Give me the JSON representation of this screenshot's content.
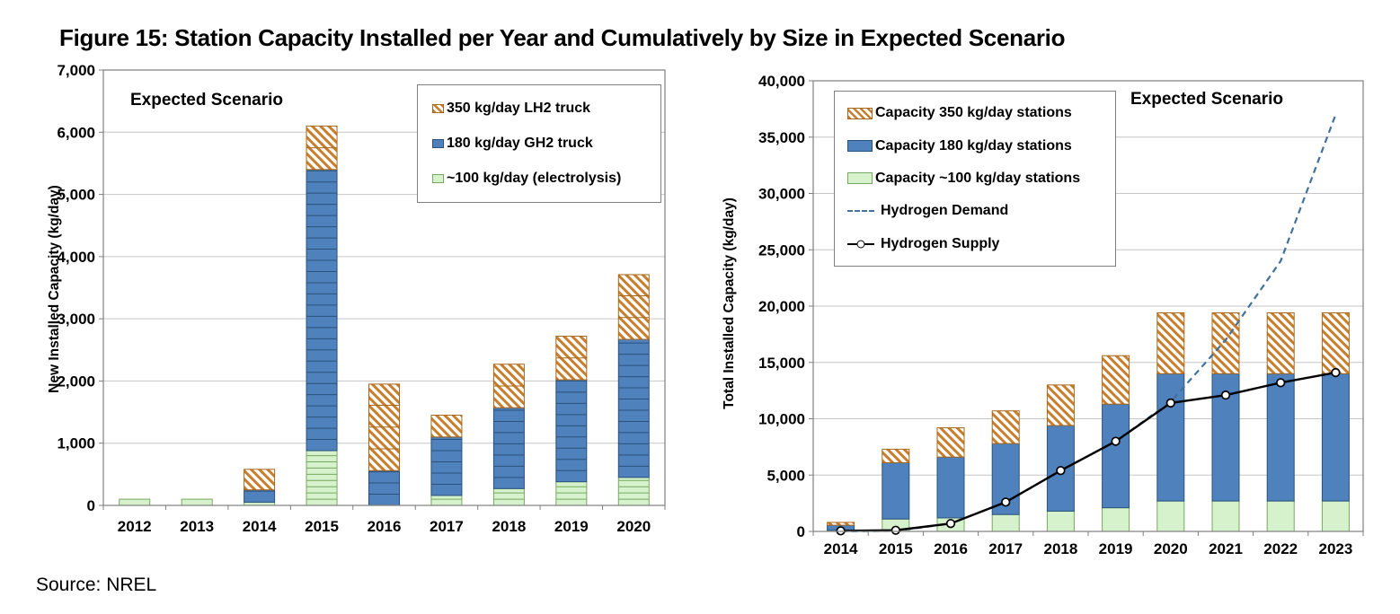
{
  "title": "Figure 15: Station Capacity Installed per Year and Cumulatively by Size in Expected Scenario",
  "source": "Source: NREL",
  "colors": {
    "bar_blue": "#4F81BD",
    "bar_blue_border": "#2A527C",
    "bar_green": "#D6F2CC",
    "bar_green_border": "#77A861",
    "hatch_orange": "#C87E2D",
    "hatch_orange_border": "#A5681C",
    "demand_line": "#41719C",
    "supply_line": "#000000",
    "gridline": "#C6C6C6",
    "plot_border": "#7F7F7F"
  },
  "chart_data": [
    {
      "type": "bar",
      "stacked": true,
      "annotation": "Expected Scenario",
      "xlabel": "",
      "ylabel": "New Installed Capacity (kg/day)",
      "ylim": [
        0,
        7000
      ],
      "ytick_step": 1000,
      "grid": true,
      "legend_position": "top-right-inside",
      "categories": [
        "2012",
        "2013",
        "2014",
        "2015",
        "2016",
        "2017",
        "2018",
        "2019",
        "2020"
      ],
      "series": [
        {
          "name": "~100 kg/day (electrolysis)",
          "style": "green",
          "unit_kg": 100,
          "values": [
            100,
            100,
            50,
            880,
            0,
            160,
            270,
            380,
            450
          ]
        },
        {
          "name": "180 kg/day GH2 truck",
          "style": "blue",
          "unit_kg": 180,
          "values": [
            0,
            0,
            200,
            4520,
            560,
            940,
            1300,
            1640,
            2220
          ]
        },
        {
          "name": "350 kg/day LH2 truck",
          "style": "orange",
          "unit_kg": 350,
          "values": [
            0,
            0,
            330,
            700,
            1390,
            350,
            700,
            700,
            1040
          ]
        }
      ],
      "bar_totals": [
        100,
        100,
        580,
        6100,
        1950,
        1450,
        2270,
        2720,
        3710
      ],
      "legend": [
        {
          "label": "350 kg/day LH2 truck",
          "swatch": "orange-hatch"
        },
        {
          "label": "180 kg/day GH2 truck",
          "swatch": "blue-solid"
        },
        {
          "label": "~100 kg/day (electrolysis)",
          "swatch": "green-solid"
        }
      ]
    },
    {
      "type": "bar+line",
      "stacked": true,
      "annotation": "Expected Scenario",
      "xlabel": "",
      "ylabel": "Total Installed Capacity (kg/day)",
      "ylim": [
        0,
        40000
      ],
      "ytick_step": 5000,
      "grid": true,
      "legend_position": "top-left-inside",
      "categories": [
        "2014",
        "2015",
        "2016",
        "2017",
        "2018",
        "2019",
        "2020",
        "2021",
        "2022",
        "2023"
      ],
      "series": [
        {
          "name": "Capacity ~100 kg/day stations",
          "style": "green",
          "values": [
            100,
            1100,
            1200,
            1500,
            1800,
            2100,
            2700,
            2700,
            2700,
            2700
          ]
        },
        {
          "name": "Capacity 180 kg/day stations",
          "style": "blue",
          "values": [
            450,
            5000,
            5400,
            6300,
            7600,
            9200,
            11300,
            11300,
            11300,
            11300
          ]
        },
        {
          "name": "Capacity 350 kg/day stations",
          "style": "orange",
          "values": [
            250,
            1200,
            2600,
            2900,
            3600,
            4300,
            5400,
            5400,
            5400,
            5400
          ]
        }
      ],
      "bar_totals": [
        800,
        7300,
        9200,
        10700,
        13000,
        15600,
        19400,
        19400,
        19400,
        19400
      ],
      "lines": [
        {
          "name": "Hydrogen Demand",
          "style": "dashed-blue",
          "values": [
            0,
            50,
            700,
            2600,
            5400,
            8000,
            11500,
            17000,
            24000,
            37000
          ]
        },
        {
          "name": "Hydrogen Supply",
          "style": "black-circles",
          "values": [
            50,
            100,
            700,
            2600,
            5400,
            8000,
            11400,
            12100,
            13200,
            14100
          ]
        }
      ],
      "legend": [
        {
          "label": "Capacity 350 kg/day stations",
          "swatch": "orange-hatch"
        },
        {
          "label": "Capacity 180 kg/day stations",
          "swatch": "blue-solid"
        },
        {
          "label": "Capacity ~100 kg/day stations",
          "swatch": "green-solid"
        },
        {
          "label": "Hydrogen Demand",
          "swatch": "dash-line"
        },
        {
          "label": "Hydrogen Supply",
          "swatch": "supply-line"
        }
      ]
    }
  ]
}
